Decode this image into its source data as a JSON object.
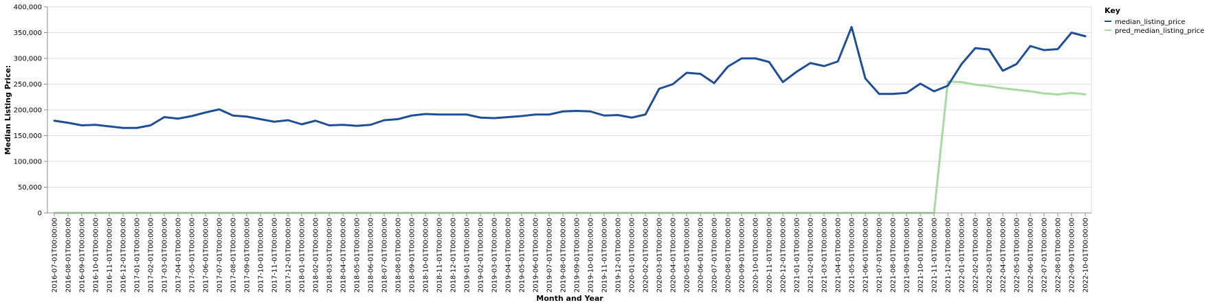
{
  "chart_data": {
    "type": "line",
    "xlabel": "Month and Year",
    "ylabel": "Median Listing Price:",
    "ylim": [
      0,
      400000
    ],
    "y_ticks": [
      0,
      50000,
      100000,
      150000,
      200000,
      250000,
      300000,
      350000,
      400000
    ],
    "y_tick_labels": [
      "0",
      "50,000",
      "100,000",
      "150,000",
      "200,000",
      "250,000",
      "300,000",
      "350,000",
      "400,000"
    ],
    "grid": true,
    "legend": {
      "title": "Key",
      "placement": "top-right"
    },
    "x": [
      "2016-07-01T00:00:00",
      "2016-08-01T00:00:00",
      "2016-09-01T00:00:00",
      "2016-10-01T00:00:00",
      "2016-11-01T00:00:00",
      "2016-12-01T00:00:00",
      "2017-01-01T00:00:00",
      "2017-02-01T00:00:00",
      "2017-03-01T00:00:00",
      "2017-04-01T00:00:00",
      "2017-05-01T00:00:00",
      "2017-06-01T00:00:00",
      "2017-07-01T00:00:00",
      "2017-08-01T00:00:00",
      "2017-09-01T00:00:00",
      "2017-10-01T00:00:00",
      "2017-11-01T00:00:00",
      "2017-12-01T00:00:00",
      "2018-01-01T00:00:00",
      "2018-02-01T00:00:00",
      "2018-03-01T00:00:00",
      "2018-04-01T00:00:00",
      "2018-05-01T00:00:00",
      "2018-06-01T00:00:00",
      "2018-07-01T00:00:00",
      "2018-08-01T00:00:00",
      "2018-09-01T00:00:00",
      "2018-10-01T00:00:00",
      "2018-11-01T00:00:00",
      "2018-12-01T00:00:00",
      "2019-01-01T00:00:00",
      "2019-02-01T00:00:00",
      "2019-03-01T00:00:00",
      "2019-04-01T00:00:00",
      "2019-05-01T00:00:00",
      "2019-06-01T00:00:00",
      "2019-07-01T00:00:00",
      "2019-08-01T00:00:00",
      "2019-09-01T00:00:00",
      "2019-10-01T00:00:00",
      "2019-11-01T00:00:00",
      "2019-12-01T00:00:00",
      "2020-01-01T00:00:00",
      "2020-02-01T00:00:00",
      "2020-03-01T00:00:00",
      "2020-04-01T00:00:00",
      "2020-05-01T00:00:00",
      "2020-06-01T00:00:00",
      "2020-07-01T00:00:00",
      "2020-08-01T00:00:00",
      "2020-09-01T00:00:00",
      "2020-10-01T00:00:00",
      "2020-11-01T00:00:00",
      "2020-12-01T00:00:00",
      "2021-01-01T00:00:00",
      "2021-02-01T00:00:00",
      "2021-03-01T00:00:00",
      "2021-04-01T00:00:00",
      "2021-05-01T00:00:00",
      "2021-06-01T00:00:00",
      "2021-07-01T00:00:00",
      "2021-08-01T00:00:00",
      "2021-09-01T00:00:00",
      "2021-10-01T00:00:00",
      "2021-11-01T00:00:00",
      "2021-12-01T00:00:00",
      "2022-01-01T00:00:00",
      "2022-02-01T00:00:00",
      "2022-03-01T00:00:00",
      "2022-04-01T00:00:00",
      "2022-05-01T00:00:00",
      "2022-06-01T00:00:00",
      "2022-07-01T00:00:00",
      "2022-08-01T00:00:00",
      "2022-09-01T00:00:00",
      "2022-10-01T00:00:00"
    ],
    "series": [
      {
        "name": "median_listing_price",
        "color": "#1f4e99",
        "values": [
          179000,
          175000,
          170000,
          171000,
          168000,
          165000,
          165000,
          170000,
          186000,
          183000,
          188000,
          195000,
          201000,
          189000,
          187000,
          182000,
          177000,
          180000,
          172000,
          179000,
          170000,
          171000,
          169000,
          171000,
          180000,
          182000,
          189000,
          192000,
          191000,
          191000,
          191000,
          185000,
          184000,
          186000,
          188000,
          191000,
          191000,
          197000,
          198000,
          197000,
          189000,
          190000,
          185000,
          191000,
          241000,
          250000,
          272000,
          270000,
          252000,
          284000,
          300000,
          300000,
          293000,
          254000,
          274000,
          291000,
          285000,
          294000,
          361000,
          261000,
          231000,
          231000,
          233000,
          251000,
          236000,
          247000,
          289000,
          320000,
          317000,
          276000,
          289000,
          324000,
          316000,
          318000,
          350000,
          343000
        ]
      },
      {
        "name": "pred_median_listing_price",
        "color": "#a6dba0",
        "values": [
          0,
          0,
          0,
          0,
          0,
          0,
          0,
          0,
          0,
          0,
          0,
          0,
          0,
          0,
          0,
          0,
          0,
          0,
          0,
          0,
          0,
          0,
          0,
          0,
          0,
          0,
          0,
          0,
          0,
          0,
          0,
          0,
          0,
          0,
          0,
          0,
          0,
          0,
          0,
          0,
          0,
          0,
          0,
          0,
          0,
          0,
          0,
          0,
          0,
          0,
          0,
          0,
          0,
          0,
          0,
          0,
          0,
          0,
          0,
          0,
          0,
          0,
          0,
          0,
          0,
          255000,
          254000,
          249000,
          246000,
          242000,
          239000,
          236000,
          232000,
          230000,
          233000,
          230000
        ]
      }
    ]
  }
}
